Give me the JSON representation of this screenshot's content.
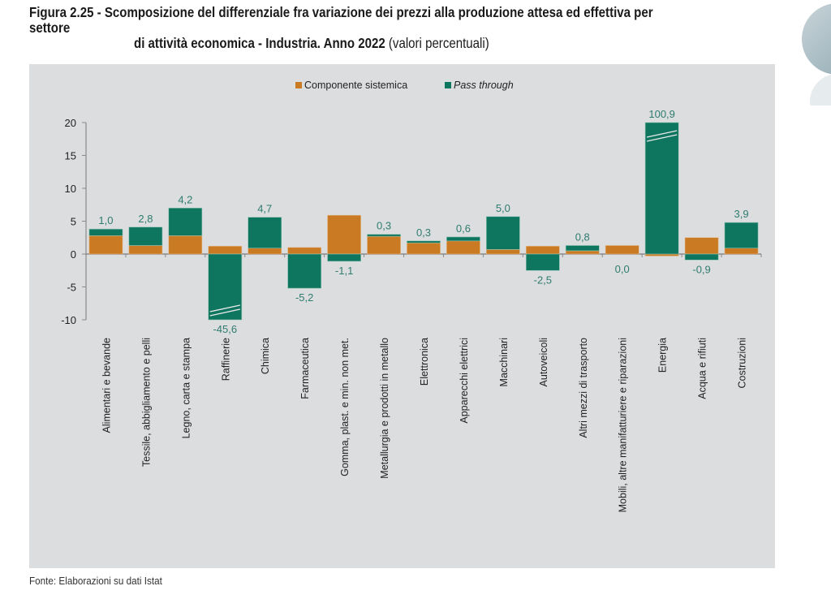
{
  "title": {
    "prefix": "Figura 2.25 - ",
    "line1": "Scomposizione del differenziale fra variazione dei prezzi alla produzione attesa ed effettiva per settore",
    "line2": "di attività economica - Industria. Anno 2022",
    "unit": "(valori percentuali)"
  },
  "source": "Fonte: Elaborazioni su dati Istat",
  "colors": {
    "sistemica": "#c97a22",
    "pass_through": "#0e765e",
    "label": "#2e7c6f",
    "panel": "#dcdddf"
  },
  "chart_data": {
    "type": "bar",
    "stacked": true,
    "title": "Scomposizione del differenziale fra variazione dei prezzi alla produzione attesa ed effettiva per settore di attività economica - Industria. Anno 2022 (valori percentuali)",
    "xlabel": "",
    "ylabel": "",
    "ylim": [
      -10,
      20
    ],
    "yticks": [
      -10,
      -5,
      0,
      5,
      10,
      15,
      20
    ],
    "ytick_labels": [
      "-10",
      "-5",
      "0",
      "5",
      "10",
      "15",
      "20"
    ],
    "grid": false,
    "legend": {
      "position": "top-center",
      "entries": [
        "Componente sistemica",
        "Pass through"
      ]
    },
    "categories": [
      "Alimentari e bevande",
      "Tessile, abbigliamento e pelli",
      "Legno, carta e stampa",
      "Raffinerie",
      "Chimica",
      "Farmaceutica",
      "Gomma, plast. e min. non met.",
      "Metallurgia e prodotti in metallo",
      "Elettronica",
      "Apparecchi elettrici",
      "Macchinari",
      "Autoveicoli",
      "Altri mezzi di trasporto",
      "Mobili, altre manifatturiere e riparazioni",
      "Energia",
      "Acqua e rifiuti",
      "Costruzioni"
    ],
    "series": [
      {
        "name": "Componente sistemica",
        "values": [
          2.8,
          1.3,
          2.8,
          1.2,
          0.9,
          1.0,
          5.9,
          2.7,
          1.7,
          2.0,
          0.7,
          1.2,
          0.5,
          1.3,
          -0.3,
          2.5,
          0.9
        ]
      },
      {
        "name": "Pass through",
        "values": [
          1.0,
          2.8,
          4.2,
          -45.6,
          4.7,
          -5.2,
          -1.1,
          0.3,
          0.3,
          0.6,
          5.0,
          -2.5,
          0.8,
          0.0,
          100.9,
          -0.9,
          3.9
        ]
      }
    ],
    "data_labels": [
      "1,0",
      "2,8",
      "4,2",
      "-45,6",
      "4,7",
      "-5,2",
      "-1,1",
      "0,3",
      "0,3",
      "0,6",
      "5,0",
      "-2,5",
      "0,8",
      "0,0",
      "100,9",
      "-0,9",
      "3,9"
    ],
    "axis_breaks": [
      "Raffinerie",
      "Energia"
    ]
  }
}
